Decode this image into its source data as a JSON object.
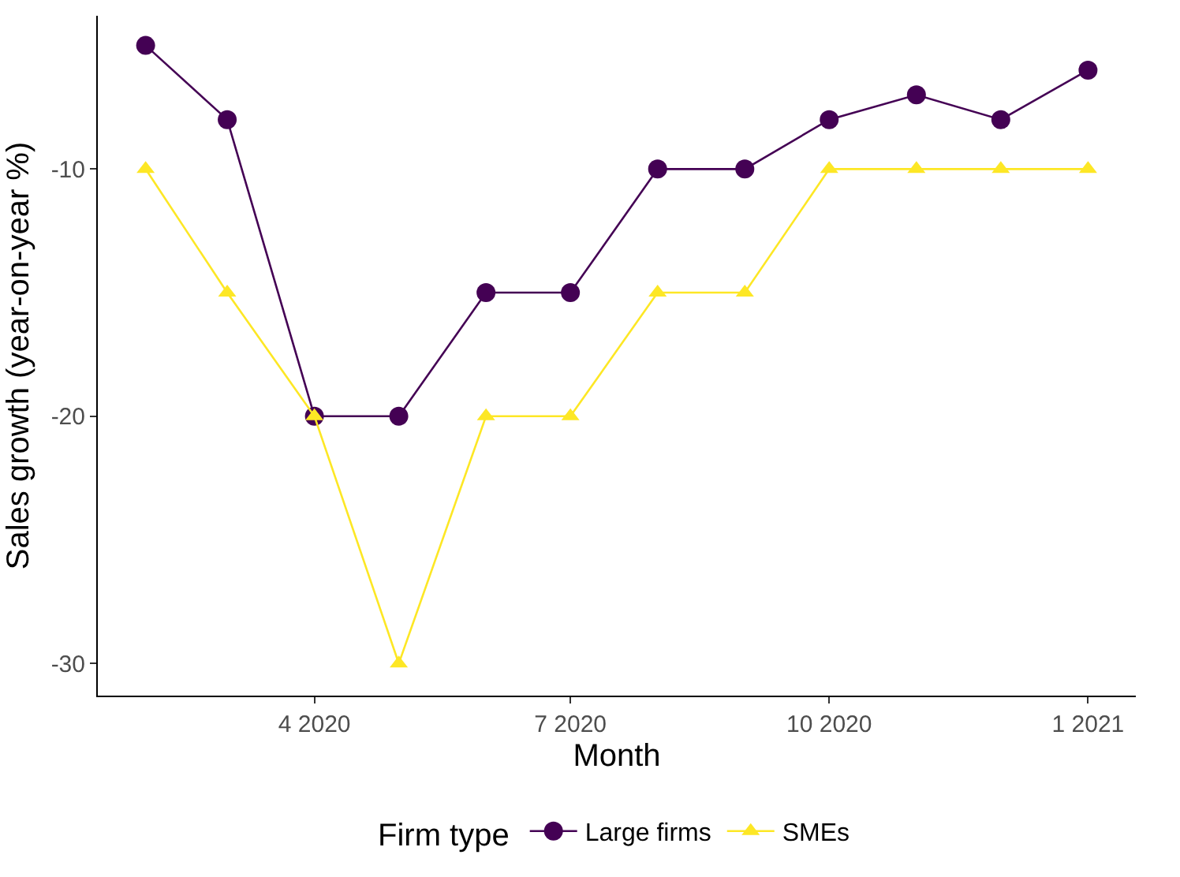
{
  "chart_data": {
    "type": "line",
    "xlabel": "Month",
    "ylabel": "Sales growth (year-on-year %)",
    "legend_title": "Firm type",
    "x": [
      "2020-02",
      "2020-03",
      "2020-04",
      "2020-05",
      "2020-06",
      "2020-07",
      "2020-08",
      "2020-09",
      "2020-10",
      "2020-11",
      "2020-12",
      "2021-01"
    ],
    "series": [
      {
        "name": "Large firms",
        "color": "#440154",
        "marker": "circle",
        "values": [
          -5,
          -8,
          -20,
          -20,
          -15,
          -15,
          -10,
          -10,
          -8,
          -7,
          -8,
          -6
        ]
      },
      {
        "name": "SMEs",
        "color": "#fde725",
        "marker": "triangle",
        "values": [
          -10,
          -15,
          -20,
          -30,
          -20,
          -20,
          -15,
          -15,
          -10,
          -10,
          -10,
          -10
        ]
      }
    ],
    "xlim": [
      "2020-01-15",
      "2021-01-18"
    ],
    "xticks": [
      {
        "value": "2020-04",
        "label": "4 2020"
      },
      {
        "value": "2020-07",
        "label": "7 2020"
      },
      {
        "value": "2020-10",
        "label": "10 2020"
      },
      {
        "value": "2021-01",
        "label": "1 2021"
      }
    ],
    "ylim": [
      -31.3,
      -3.8
    ],
    "yticks": [
      -30,
      -20,
      -10
    ],
    "legend": "bottom",
    "line_style": "solid"
  }
}
